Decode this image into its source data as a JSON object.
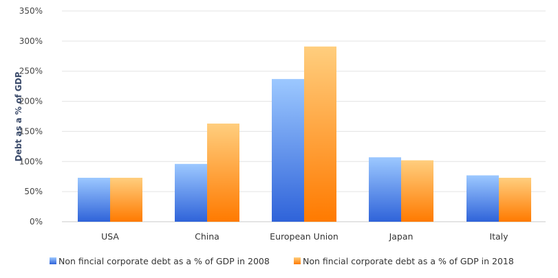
{
  "chart_data": {
    "type": "bar",
    "title": "",
    "xlabel": "",
    "ylabel": "Debt as a % of GDP",
    "ylim": [
      0,
      350
    ],
    "yticks": [
      "0%",
      "50%",
      "100%",
      "150%",
      "200%",
      "250%",
      "300%",
      "350%"
    ],
    "categories": [
      "USA",
      "China",
      "European Union",
      "Japan",
      "Italy"
    ],
    "series": [
      {
        "name": "Non fincial corporate debt as a % of GDP in 2008",
        "values": [
          73,
          96,
          237,
          107,
          77
        ]
      },
      {
        "name": "Non fincial corporate debt as a % of GDP in 2018",
        "values": [
          73,
          163,
          291,
          102,
          73
        ]
      }
    ],
    "grid": true,
    "legend": "bottom",
    "colors": {
      "series_2008_top": "#9cc8ff",
      "series_2008_bottom": "#2f63d9",
      "series_2018_top": "#ffce7e",
      "series_2018_bottom": "#ff7a00"
    }
  }
}
